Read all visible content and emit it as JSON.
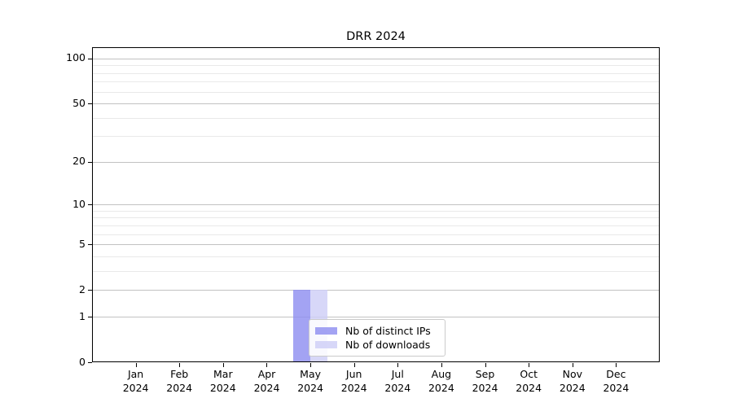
{
  "chart_data": {
    "type": "bar",
    "title": "DRR 2024",
    "x_categories": [
      "Jan",
      "Feb",
      "Mar",
      "Apr",
      "May",
      "Jun",
      "Jul",
      "Aug",
      "Sep",
      "Oct",
      "Nov",
      "Dec"
    ],
    "x_year": "2024",
    "series": [
      {
        "name": "Nb of distinct IPs",
        "color": "#8f8ff0",
        "opacity": 0.82,
        "values": [
          0,
          0,
          0,
          0,
          2,
          0,
          0,
          0,
          0,
          0,
          0,
          0
        ]
      },
      {
        "name": "Nb of downloads",
        "color": "#cecef6",
        "opacity": 0.82,
        "values": [
          0,
          0,
          0,
          0,
          2,
          0,
          0,
          0,
          0,
          0,
          0,
          0
        ]
      }
    ],
    "y_axis": {
      "scale": "log1p",
      "ticks": [
        0,
        1,
        2,
        5,
        10,
        20,
        50,
        100
      ],
      "minor_ticks": [
        3,
        4,
        6,
        7,
        8,
        9,
        30,
        40,
        60,
        70,
        80,
        90
      ],
      "max": 119
    },
    "grid": {
      "horizontal": true,
      "major_color": "#c2c2c2",
      "minor_color": "#e9e9e9"
    },
    "legend_position": "inside lower-center",
    "bar_width_fraction": 0.4
  }
}
